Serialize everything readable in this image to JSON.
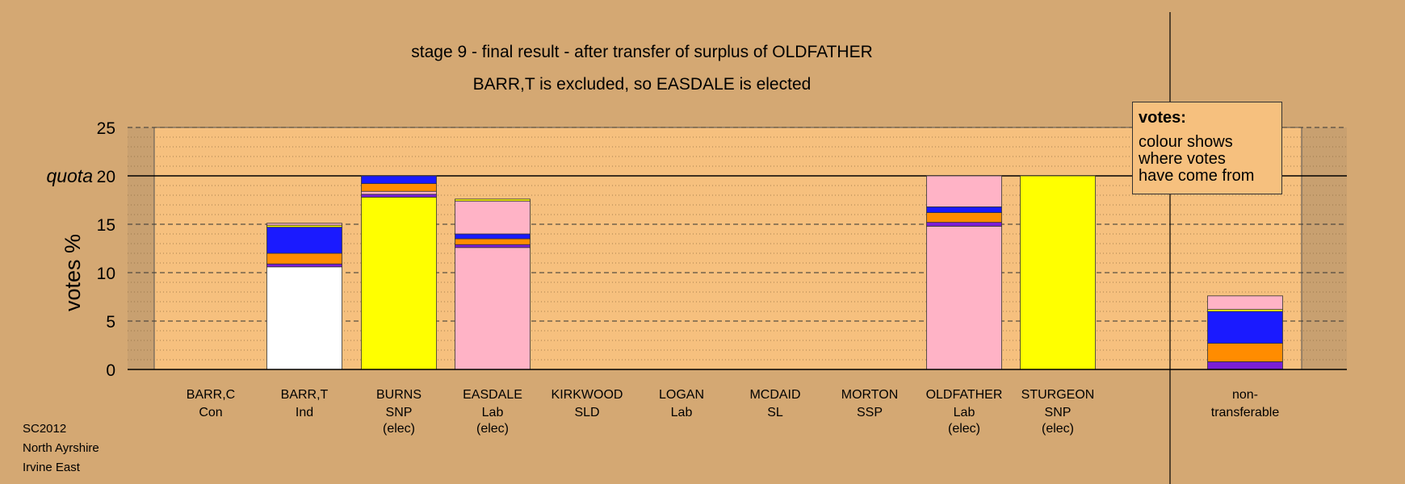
{
  "title_line1": "stage 9 - final result - after transfer of surplus of OLDFATHER",
  "title_line2": "BARR,T is excluded, so EASDALE is elected",
  "footer": {
    "line1": "SC2012",
    "line2": "North Ayrshire",
    "line3": "Irvine East"
  },
  "legend": {
    "title": "votes:",
    "line1": "colour shows",
    "line2": "where votes",
    "line3": "have come from"
  },
  "colors": {
    "background": "#d4a873",
    "plot_area": "#f6c07e",
    "plot_side": "#c8a070",
    "Con": "#1a1aff",
    "Ind": "#ffffff",
    "SNP": "#ffff00",
    "Lab": "#ffb3c6",
    "SLD": "#ff8c00",
    "SL": "#7a1fd6",
    "SSP": "#c0001a",
    "nt_orange": "#ff8c00",
    "nt_purple": "#7a1fd6"
  },
  "chart_data": {
    "type": "bar",
    "stacked": true,
    "ylabel": "votes %",
    "ylim": [
      0,
      25
    ],
    "yticks": [
      0,
      5,
      10,
      15,
      20,
      25
    ],
    "quota": 20,
    "quota_label": "quota",
    "grid": true,
    "legend_position": "top-right",
    "categories": [
      {
        "name": "BARR,C",
        "party": "Con",
        "status": ""
      },
      {
        "name": "BARR,T",
        "party": "Ind",
        "status": ""
      },
      {
        "name": "BURNS",
        "party": "SNP",
        "status": "(elec)"
      },
      {
        "name": "EASDALE",
        "party": "Lab",
        "status": "(elec)"
      },
      {
        "name": "KIRKWOOD",
        "party": "SLD",
        "status": ""
      },
      {
        "name": "LOGAN",
        "party": "Lab",
        "status": ""
      },
      {
        "name": "MCDAID",
        "party": "SL",
        "status": ""
      },
      {
        "name": "MORTON",
        "party": "SSP",
        "status": ""
      },
      {
        "name": "OLDFATHER",
        "party": "Lab",
        "status": "(elec)"
      },
      {
        "name": "STURGEON",
        "party": "SNP",
        "status": "(elec)"
      },
      {
        "name": "non-",
        "party": "transferable",
        "status": ""
      }
    ],
    "stacks": [
      [],
      [
        {
          "color": "Ind",
          "value": 10.6
        },
        {
          "color": "SL",
          "value": 0.3
        },
        {
          "color": "SLD",
          "value": 1.1
        },
        {
          "color": "Con",
          "value": 2.7
        },
        {
          "color": "SNP",
          "value": 0.2
        },
        {
          "color": "Lab",
          "value": 0.2
        }
      ],
      [
        {
          "color": "SNP",
          "value": 17.8
        },
        {
          "color": "SL",
          "value": 0.3
        },
        {
          "color": "Lab",
          "value": 0.3
        },
        {
          "color": "SLD",
          "value": 0.8
        },
        {
          "color": "Con",
          "value": 0.8
        }
      ],
      [
        {
          "color": "Lab",
          "value": 12.6
        },
        {
          "color": "SL",
          "value": 0.3
        },
        {
          "color": "SLD",
          "value": 0.6
        },
        {
          "color": "Con",
          "value": 0.5
        },
        {
          "color": "Lab",
          "value": 3.4
        },
        {
          "color": "SNP",
          "value": 0.2
        }
      ],
      [],
      [],
      [],
      [],
      [
        {
          "color": "Lab",
          "value": 14.8
        },
        {
          "color": "SL",
          "value": 0.4
        },
        {
          "color": "SLD",
          "value": 1.0
        },
        {
          "color": "Con",
          "value": 0.6
        },
        {
          "color": "Lab",
          "value": 3.2
        }
      ],
      [
        {
          "color": "SNP",
          "value": 20.0
        }
      ],
      [
        {
          "color": "nt_purple",
          "value": 0.8
        },
        {
          "color": "nt_orange",
          "value": 1.9
        },
        {
          "color": "Con",
          "value": 3.3
        },
        {
          "color": "SNP",
          "value": 0.2
        },
        {
          "color": "Lab",
          "value": 1.4
        }
      ]
    ]
  }
}
